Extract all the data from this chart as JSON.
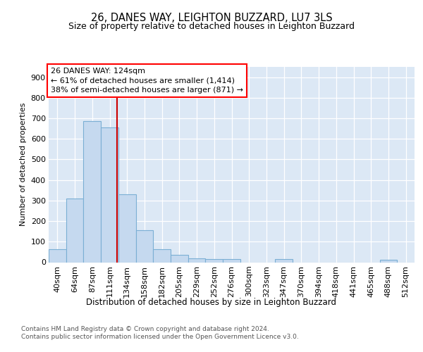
{
  "title": "26, DANES WAY, LEIGHTON BUZZARD, LU7 3LS",
  "subtitle": "Size of property relative to detached houses in Leighton Buzzard",
  "xlabel": "Distribution of detached houses by size in Leighton Buzzard",
  "ylabel": "Number of detached properties",
  "categories": [
    "40sqm",
    "64sqm",
    "87sqm",
    "111sqm",
    "134sqm",
    "158sqm",
    "182sqm",
    "205sqm",
    "229sqm",
    "252sqm",
    "276sqm",
    "300sqm",
    "323sqm",
    "347sqm",
    "370sqm",
    "394sqm",
    "418sqm",
    "441sqm",
    "465sqm",
    "488sqm",
    "512sqm"
  ],
  "values": [
    63,
    310,
    685,
    655,
    330,
    155,
    65,
    35,
    18,
    14,
    14,
    0,
    0,
    14,
    0,
    0,
    0,
    0,
    0,
    12,
    0
  ],
  "bar_color": "#c5d9ef",
  "bar_edge_color": "#7bafd4",
  "vline_x": 3.42,
  "vline_color": "#cc0000",
  "ann_line1": "26 DANES WAY: 124sqm",
  "ann_line2": "← 61% of detached houses are smaller (1,414)",
  "ann_line3": "38% of semi-detached houses are larger (871) →",
  "ylim": [
    0,
    950
  ],
  "yticks": [
    0,
    100,
    200,
    300,
    400,
    500,
    600,
    700,
    800,
    900
  ],
  "footer_line1": "Contains HM Land Registry data © Crown copyright and database right 2024.",
  "footer_line2": "Contains public sector information licensed under the Open Government Licence v3.0.",
  "plot_bg_color": "#dce8f5",
  "grid_color": "#ffffff",
  "title_fontsize": 10.5,
  "subtitle_fontsize": 9,
  "axis_label_fontsize": 8.5,
  "ylabel_fontsize": 8,
  "tick_fontsize": 8,
  "ann_fontsize": 8,
  "footer_fontsize": 6.5
}
